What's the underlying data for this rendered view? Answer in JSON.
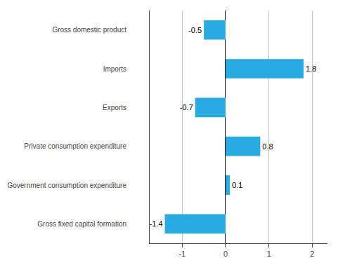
{
  "chart_data": {
    "type": "bar",
    "orientation": "horizontal",
    "categories": [
      "Gross fixed capital formation",
      "Government consumption expenditure",
      "Private consumption expenditure",
      "Exports",
      "Imports",
      "Gross domestic product"
    ],
    "values": [
      -1.4,
      0.1,
      0.8,
      -0.7,
      1.8,
      -0.5
    ],
    "color": "#29abe2",
    "xlim": [
      -1.75,
      2.35
    ],
    "xticks": [
      -1,
      0,
      1,
      2
    ],
    "grid": true,
    "data_labels": true
  }
}
